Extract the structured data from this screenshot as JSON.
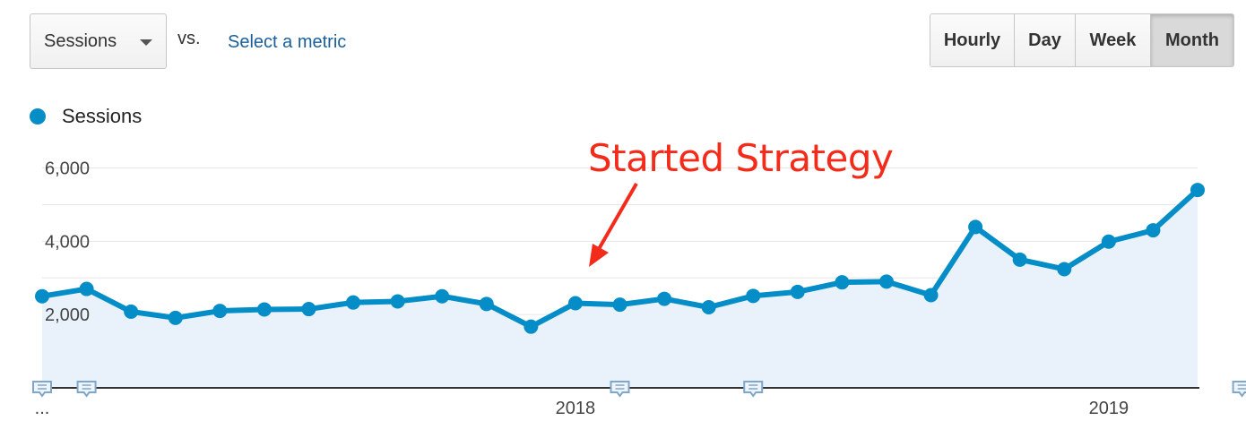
{
  "toolbar": {
    "metric_select": "Sessions",
    "vs": "vs.",
    "select_metric": "Select a metric",
    "time_buttons": [
      "Hourly",
      "Day",
      "Week",
      "Month"
    ],
    "active_button": "Month"
  },
  "colors": {
    "line": "#058dc7",
    "area": "#e9f2fa",
    "annotation": "#f22b1a",
    "link": "#1a5f9a"
  },
  "annotation": {
    "text": "Started Strategy"
  },
  "chart_data": {
    "type": "area",
    "series": [
      {
        "name": "Sessions",
        "values": [
          2500,
          2700,
          2080,
          1910,
          2100,
          2140,
          2150,
          2330,
          2360,
          2500,
          2290,
          1670,
          2310,
          2270,
          2430,
          2200,
          2510,
          2620,
          2880,
          2900,
          2530,
          4390,
          3500,
          3240,
          3990,
          4300,
          5400
        ]
      }
    ],
    "yticks": [
      2000,
      4000,
      6000
    ],
    "ytick_labels": [
      "2,000",
      "4,000",
      "6,000"
    ],
    "ylim": [
      0,
      6600
    ],
    "x_labels": [
      {
        "index": 0,
        "label": "..."
      },
      {
        "index": 12,
        "label": "2018"
      },
      {
        "index": 24,
        "label": "2019"
      }
    ],
    "annotation_markers": [
      0,
      1,
      13,
      16,
      27
    ],
    "grid": true,
    "legend": "top-left"
  }
}
